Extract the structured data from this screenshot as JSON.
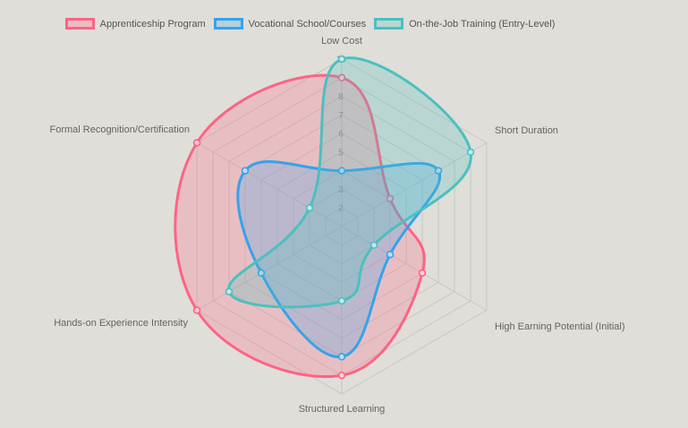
{
  "page": {
    "background_color": "#dfded9"
  },
  "chart_data": {
    "type": "radar",
    "categories": [
      "Low Cost",
      "Short Duration",
      "High Earning Potential (Initial)",
      "Structured Learning",
      "Hands-on Experience Intensity",
      "Formal Recognition/Certification"
    ],
    "series": [
      {
        "name": "Apprenticeship Program",
        "color": "#ff6384",
        "values": [
          9,
          4,
          6,
          9,
          10,
          10
        ]
      },
      {
        "name": "Vocational School/Courses",
        "color": "#36a2eb",
        "values": [
          4,
          7,
          4,
          8,
          6,
          7
        ]
      },
      {
        "name": "On-the-Job Training (Entry-Level)",
        "color": "#4bc0c0",
        "values": [
          10,
          9,
          3,
          5,
          8,
          3
        ]
      }
    ],
    "scale": {
      "min": 1,
      "max": 10,
      "step": 1,
      "visible_tick_labels": [
        "2",
        "3",
        "4",
        "5",
        "6",
        "7",
        "8",
        "9",
        "10"
      ]
    },
    "legend_position": "top",
    "grid": true,
    "grid_shape": "hexagon",
    "grid_color": "#c9c7c0",
    "fill_opacity": 0.25,
    "title": ""
  }
}
